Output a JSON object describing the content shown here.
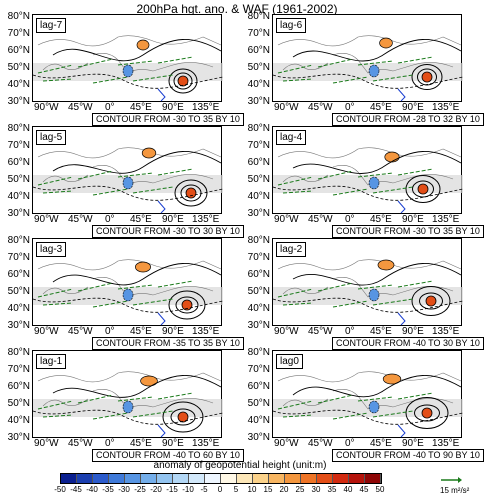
{
  "title": "200hPa hgt. ano. & WAF (1961-2002)",
  "lat_labels": [
    "80°N",
    "70°N",
    "60°N",
    "50°N",
    "40°N",
    "30°N"
  ],
  "lon_labels": [
    "90°W",
    "45°W",
    "0°",
    "45°E",
    "90°E",
    "135°E"
  ],
  "panels": [
    {
      "lag": "lag-7",
      "contour": "CONTOUR FROM -30 TO 35 BY 10"
    },
    {
      "lag": "lag-6",
      "contour": "CONTOUR FROM -28 TO 32 BY 10"
    },
    {
      "lag": "lag-5",
      "contour": "CONTOUR FROM -30 TO 30 BY 10"
    },
    {
      "lag": "lag-4",
      "contour": "CONTOUR FROM -30 TO 35 BY 10"
    },
    {
      "lag": "lag-3",
      "contour": "CONTOUR FROM -35 TO 35 BY 10"
    },
    {
      "lag": "lag-2",
      "contour": "CONTOUR FROM -40 TO 30 BY 10"
    },
    {
      "lag": "lag-1",
      "contour": "CONTOUR FROM -40 TO 60 BY 10"
    },
    {
      "lag": "lag0",
      "contour": "CONTOUR FROM -40 TO 90 BY 10"
    }
  ],
  "colorbar": {
    "title": "anomaly of geopotential height (unit:m)",
    "labels": [
      "-50",
      "-45",
      "-40",
      "-35",
      "-30",
      "-25",
      "-20",
      "-15",
      "-10",
      "-5",
      "0",
      "5",
      "10",
      "15",
      "20",
      "25",
      "30",
      "35",
      "40",
      "45",
      "50"
    ],
    "colors": [
      "#0a1f8f",
      "#1b3fb0",
      "#2c5bcc",
      "#3f7ad9",
      "#5795e3",
      "#74aeea",
      "#93c4f0",
      "#b3d7f5",
      "#d2e8fa",
      "#eef6ff",
      "#fff8e6",
      "#fde7b8",
      "#fbd28a",
      "#f8b662",
      "#f4973f",
      "#ee7426",
      "#e34e17",
      "#d22a10",
      "#b5130b",
      "#8e0606"
    ]
  },
  "reference_vector": "15 m²/s²"
}
